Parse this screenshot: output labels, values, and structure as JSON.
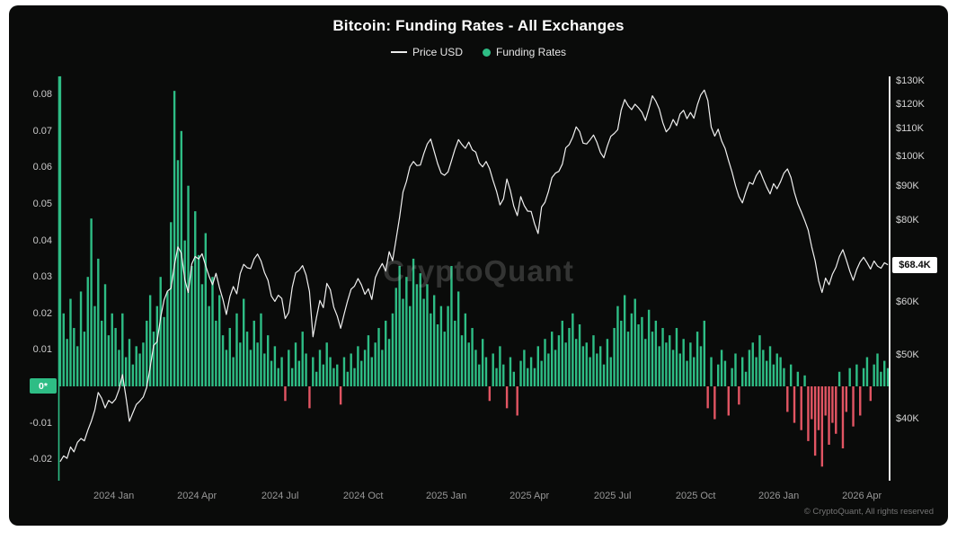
{
  "header": {
    "title": "Bitcoin: Funding Rates - All Exchanges"
  },
  "legend": {
    "items": [
      {
        "label": "Price USD",
        "type": "line",
        "color": "#ededed"
      },
      {
        "label": "Funding Rates",
        "type": "dot",
        "color": "#2ebd85"
      }
    ]
  },
  "watermark": {
    "text": "CryptoQuant"
  },
  "footer": {
    "copyright": "© CryptoQuant, All rights reserved"
  },
  "badges": {
    "zero": {
      "label": "0*",
      "bg": "#2ebd85"
    },
    "price": {
      "label": "$68.4K",
      "bg": "#ffffff"
    }
  },
  "chart_data": {
    "type": "bar",
    "combo": "bar (funding rates, left axis) + line (price USD, right log axis)",
    "title": "Bitcoin: Funding Rates - All Exchanges",
    "timeline": {
      "start": "2023-11",
      "end": "2026-04",
      "points_per_month": 8
    },
    "months": [
      "2023-11",
      "2023-12",
      "2024-01",
      "2024-02",
      "2024-03",
      "2024-04",
      "2024-05",
      "2024-06",
      "2024-07",
      "2024-08",
      "2024-09",
      "2024-10",
      "2024-11",
      "2024-12",
      "2025-01",
      "2025-02",
      "2025-03",
      "2025-04",
      "2025-05",
      "2025-06",
      "2025-07",
      "2025-08",
      "2025-09",
      "2025-10",
      "2025-11",
      "2025-12",
      "2026-01",
      "2026-02",
      "2026-03",
      "2026-04"
    ],
    "left_axis": {
      "label": "Funding Rates",
      "ticks": [
        0.08,
        0.07,
        0.06,
        0.05,
        0.04,
        0.03,
        0.02,
        0.01,
        -0.01,
        -0.02
      ],
      "zero_label": "0*",
      "range": [
        -0.026,
        0.085
      ]
    },
    "right_axis": {
      "label": "Price USD",
      "scale": "log",
      "tick_labels": [
        "$130K",
        "$120K",
        "$110K",
        "$100K",
        "$90K",
        "$80K",
        "$60K",
        "$50K",
        "$40K"
      ],
      "tick_values_k": [
        130,
        120,
        110,
        100,
        90,
        80,
        60,
        50,
        40
      ],
      "current_price_label": "$68.4K",
      "current_price_k": 68.4
    },
    "x_axis": {
      "tick_labels": [
        "2024 Jan",
        "2024 Apr",
        "2024 Jul",
        "2024 Oct",
        "2025 Jan",
        "2025 Apr",
        "2025 Jul",
        "2025 Oct",
        "2026 Jan",
        "2026 Apr"
      ],
      "tick_month_offsets": [
        2,
        5,
        8,
        11,
        14,
        17,
        20,
        23,
        26,
        29
      ]
    },
    "series": [
      {
        "name": "Funding Rates",
        "type": "bar",
        "axis": "left",
        "color_positive": "#2ebd85",
        "color_negative": "#e25563",
        "values": [
          0.085,
          0.02,
          0.013,
          0.024,
          0.016,
          0.011,
          0.026,
          0.015,
          0.03,
          0.046,
          0.022,
          0.035,
          0.018,
          0.028,
          0.014,
          0.02,
          0.016,
          0.01,
          0.02,
          0.008,
          0.013,
          0.006,
          0.011,
          0.009,
          0.012,
          0.018,
          0.025,
          0.015,
          0.022,
          0.03,
          0.019,
          0.026,
          0.045,
          0.081,
          0.062,
          0.07,
          0.04,
          0.055,
          0.033,
          0.048,
          0.036,
          0.028,
          0.042,
          0.022,
          0.03,
          0.018,
          0.025,
          0.014,
          0.01,
          0.016,
          0.008,
          0.02,
          0.012,
          0.024,
          0.015,
          0.01,
          0.018,
          0.012,
          0.02,
          0.009,
          0.014,
          0.007,
          0.011,
          0.005,
          0.008,
          -0.004,
          0.01,
          0.005,
          0.012,
          0.007,
          0.015,
          0.009,
          -0.006,
          0.008,
          0.004,
          0.01,
          0.006,
          0.012,
          0.008,
          0.005,
          0.006,
          -0.005,
          0.008,
          0.004,
          0.009,
          0.005,
          0.011,
          0.007,
          0.01,
          0.014,
          0.008,
          0.012,
          0.016,
          0.01,
          0.018,
          0.013,
          0.02,
          0.027,
          0.033,
          0.024,
          0.03,
          0.022,
          0.035,
          0.028,
          0.031,
          0.024,
          0.028,
          0.02,
          0.025,
          0.017,
          0.022,
          0.015,
          0.022,
          0.033,
          0.018,
          0.026,
          0.014,
          0.02,
          0.012,
          0.016,
          0.01,
          0.006,
          0.013,
          0.008,
          -0.004,
          0.009,
          0.005,
          0.011,
          0.006,
          -0.006,
          0.008,
          0.004,
          -0.008,
          0.007,
          0.01,
          0.005,
          0.008,
          0.005,
          0.011,
          0.007,
          0.013,
          0.009,
          0.015,
          0.01,
          0.014,
          0.018,
          0.012,
          0.016,
          0.02,
          0.013,
          0.017,
          0.011,
          0.012,
          0.008,
          0.014,
          0.009,
          0.011,
          0.006,
          0.013,
          0.008,
          0.016,
          0.022,
          0.018,
          0.025,
          0.015,
          0.02,
          0.024,
          0.017,
          0.019,
          0.013,
          0.021,
          0.015,
          0.018,
          0.011,
          0.016,
          0.012,
          0.014,
          0.01,
          0.016,
          0.009,
          0.013,
          0.007,
          0.012,
          0.008,
          0.015,
          0.011,
          0.018,
          -0.006,
          0.008,
          -0.009,
          0.006,
          0.01,
          0.007,
          -0.008,
          0.005,
          0.009,
          -0.005,
          0.008,
          0.004,
          0.01,
          0.012,
          0.008,
          0.014,
          0.01,
          0.007,
          0.011,
          0.006,
          0.009,
          0.008,
          0.005,
          -0.007,
          0.006,
          -0.01,
          0.004,
          -0.012,
          0.003,
          -0.015,
          -0.009,
          -0.019,
          -0.012,
          -0.022,
          -0.008,
          -0.016,
          -0.01,
          -0.013,
          0.004,
          -0.017,
          -0.007,
          0.005,
          -0.011,
          0.006,
          -0.008,
          0.005,
          0.008,
          -0.004,
          0.006,
          0.009,
          0.004,
          0.007,
          0.005
        ]
      },
      {
        "name": "Price USD",
        "type": "line",
        "axis": "right",
        "unit": "K USD",
        "color": "#f0f0f0",
        "values": [
          34.4,
          35.1,
          34.8,
          36.2,
          35.6,
          36.8,
          37.3,
          37.0,
          38.4,
          39.6,
          41.2,
          43.8,
          42.9,
          41.5,
          42.6,
          42.2,
          42.8,
          44.2,
          46.6,
          43.1,
          39.6,
          40.8,
          42.0,
          42.5,
          43.1,
          44.6,
          47.8,
          51.6,
          52.3,
          56.8,
          60.5,
          62.4,
          63.0,
          68.3,
          72.8,
          71.2,
          64.9,
          62.1,
          68.6,
          70.4,
          69.8,
          71.1,
          68.2,
          65.7,
          63.8,
          66.4,
          63.2,
          60.6,
          57.5,
          61.2,
          63.4,
          61.8,
          66.3,
          68.5,
          67.7,
          67.5,
          69.8,
          71.0,
          69.3,
          66.6,
          64.8,
          61.3,
          60.2,
          61.5,
          60.8,
          56.7,
          57.9,
          63.2,
          66.5,
          67.1,
          68.2,
          66.0,
          62.3,
          53.2,
          56.8,
          60.4,
          58.9,
          64.1,
          62.7,
          59.0,
          57.2,
          54.8,
          57.6,
          60.3,
          62.8,
          63.5,
          65.2,
          63.8,
          61.7,
          62.9,
          60.6,
          65.4,
          67.2,
          68.7,
          66.9,
          71.6,
          69.4,
          74.8,
          80.6,
          88.2,
          91.5,
          96.3,
          98.1,
          96.7,
          96.9,
          100.8,
          104.3,
          106.1,
          101.6,
          97.4,
          94.2,
          93.5,
          94.6,
          98.3,
          102.4,
          105.9,
          104.1,
          102.7,
          105.0,
          102.2,
          101.4,
          97.6,
          96.3,
          98.1,
          95.7,
          91.8,
          88.4,
          84.3,
          86.1,
          92.3,
          88.6,
          83.9,
          81.2,
          86.8,
          84.1,
          82.5,
          82.4,
          78.9,
          76.3,
          83.7,
          85.1,
          88.4,
          92.7,
          94.2,
          94.8,
          97.2,
          102.9,
          104.1,
          106.8,
          110.7,
          108.9,
          104.6,
          104.3,
          105.8,
          107.6,
          104.9,
          101.2,
          99.4,
          103.6,
          107.1,
          108.2,
          109.6,
          117.4,
          121.8,
          119.2,
          117.6,
          119.8,
          118.3,
          116.5,
          113.2,
          117.9,
          123.4,
          121.1,
          117.8,
          112.4,
          108.8,
          110.3,
          113.6,
          111.2,
          115.8,
          117.3,
          113.9,
          116.4,
          114.1,
          119.6,
          123.8,
          125.9,
          121.4,
          110.6,
          107.2,
          109.8,
          105.4,
          102.7,
          98.4,
          94.6,
          90.2,
          86.8,
          84.9,
          88.3,
          91.2,
          90.6,
          93.4,
          95.1,
          92.3,
          89.7,
          87.6,
          90.8,
          89.2,
          91.4,
          94.2,
          95.6,
          92.8,
          88.1,
          84.6,
          82.3,
          79.8,
          77.2,
          72.8,
          69.4,
          64.7,
          62.1,
          65.3,
          63.8,
          66.2,
          67.8,
          70.4,
          72.1,
          69.6,
          66.9,
          64.8,
          67.3,
          69.1,
          70.2,
          68.9,
          67.4,
          69.3,
          68.1,
          67.6,
          68.9,
          68.4
        ]
      }
    ]
  }
}
